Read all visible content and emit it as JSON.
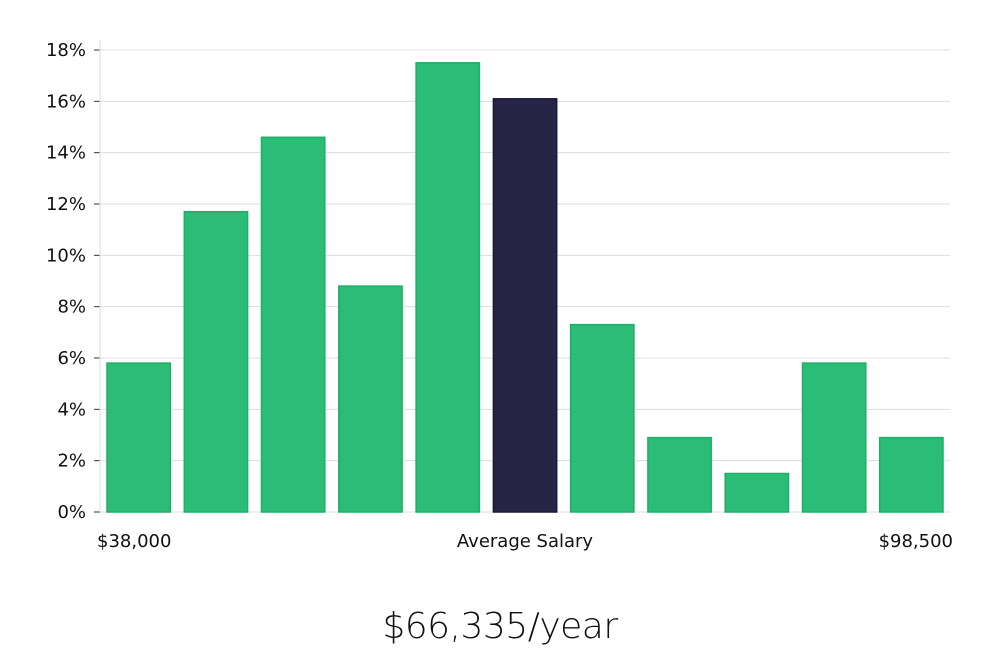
{
  "chart_data": {
    "type": "bar",
    "title": "",
    "xlabel": "",
    "ylabel": "",
    "ylim": [
      0,
      18
    ],
    "y_ticks": [
      0,
      2,
      4,
      6,
      8,
      10,
      12,
      14,
      16,
      18
    ],
    "y_tick_suffix": "%",
    "grid": "horizontal",
    "values": [
      5.8,
      11.7,
      14.6,
      8.8,
      17.5,
      16.1,
      7.3,
      2.9,
      1.5,
      5.8,
      2.9
    ],
    "highlight_index": 5,
    "bar_color": "#2bbd76",
    "highlight_color": "#272445",
    "grid_color": "#dddddd",
    "x_labels": {
      "min": "$38,000",
      "center": "Average Salary",
      "max": "$98,500"
    }
  },
  "summary": {
    "salary": "$66,335/year"
  }
}
